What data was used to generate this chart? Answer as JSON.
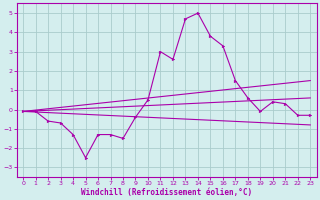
{
  "xlabel": "Windchill (Refroidissement éolien,°C)",
  "background_color": "#d4eeee",
  "grid_color": "#aacccc",
  "line_color": "#aa00aa",
  "xlim": [
    -0.5,
    23.5
  ],
  "ylim": [
    -3.5,
    5.5
  ],
  "yticks": [
    -3,
    -2,
    -1,
    0,
    1,
    2,
    3,
    4,
    5
  ],
  "xticks": [
    0,
    1,
    2,
    3,
    4,
    5,
    6,
    7,
    8,
    9,
    10,
    11,
    12,
    13,
    14,
    15,
    16,
    17,
    18,
    19,
    20,
    21,
    22,
    23
  ],
  "series_main": {
    "x": [
      0,
      1,
      2,
      3,
      4,
      5,
      6,
      7,
      8,
      9,
      10,
      11,
      12,
      13,
      14,
      15,
      16,
      17,
      18,
      19,
      20,
      21,
      22,
      23
    ],
    "y": [
      -0.1,
      -0.1,
      -0.6,
      -0.7,
      -1.3,
      -2.5,
      -1.3,
      -1.3,
      -1.5,
      -0.4,
      0.5,
      3.0,
      2.6,
      4.7,
      5.0,
      3.8,
      3.3,
      1.5,
      0.6,
      -0.1,
      0.4,
      0.3,
      -0.3,
      -0.3
    ]
  },
  "trend_lines": [
    {
      "x": [
        0,
        23
      ],
      "y": [
        -0.1,
        1.5
      ]
    },
    {
      "x": [
        0,
        23
      ],
      "y": [
        -0.1,
        0.6
      ]
    },
    {
      "x": [
        0,
        23
      ],
      "y": [
        -0.1,
        -0.8
      ]
    }
  ]
}
